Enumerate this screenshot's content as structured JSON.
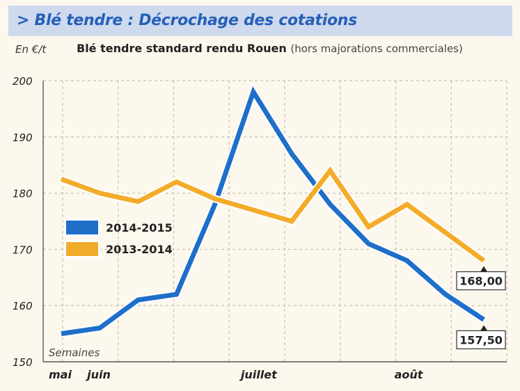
{
  "header": {
    "title": "> Blé tendre : Décrochage des cotations"
  },
  "chart_data": {
    "type": "line",
    "title": "Blé tendre standard rendu Rouen",
    "subtitle": "(hors majorations commerciales)",
    "ylabel": "En €/t",
    "xlabel": "Semaines",
    "ylim": [
      150,
      200
    ],
    "yticks": [
      150,
      160,
      170,
      180,
      190,
      200
    ],
    "x_month_labels": [
      {
        "label": "mai",
        "week": 0
      },
      {
        "label": "juin",
        "week": 1
      },
      {
        "label": "juillet",
        "week": 5
      },
      {
        "label": "août",
        "week": 9
      }
    ],
    "grid": true,
    "legend_position": "left",
    "series": [
      {
        "name": "2014-2015",
        "color": "#1f6fc9",
        "values": [
          155,
          156,
          161,
          162,
          178,
          198,
          187,
          178,
          171,
          168,
          162,
          157.5
        ]
      },
      {
        "name": "2013-2014",
        "color": "#f3ac2a",
        "values": [
          182.5,
          180,
          178.5,
          182,
          179,
          177,
          175,
          184,
          174,
          178,
          173,
          168
        ]
      }
    ],
    "callouts": [
      {
        "series": "2013-2014",
        "text": "168,00"
      },
      {
        "series": "2014-2015",
        "text": "157,50"
      }
    ]
  }
}
